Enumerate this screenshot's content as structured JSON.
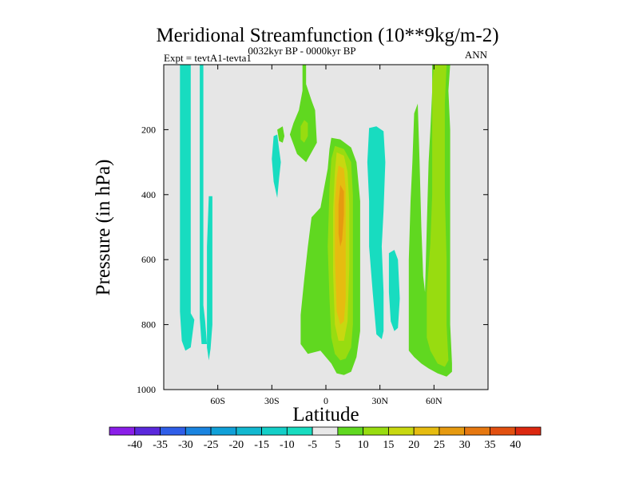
{
  "chart_data": {
    "type": "heatmap",
    "title": "Meridional Streamfunction (10**9kg/m-2)",
    "left_label": "Expt = tevtA1-tevta1",
    "center_label": "0032kyr BP - 0000kyr BP",
    "right_label": "ANN",
    "xlabel": "Latitude",
    "ylabel": "Pressure (in hPa)",
    "xlim": [
      -90,
      90
    ],
    "ylim": [
      1000,
      0
    ],
    "x_ticks": [
      {
        "value": -60,
        "label": "60S"
      },
      {
        "value": -30,
        "label": "30S"
      },
      {
        "value": 0,
        "label": "0"
      },
      {
        "value": 30,
        "label": "30N"
      },
      {
        "value": 60,
        "label": "60N"
      }
    ],
    "y_ticks": [
      {
        "value": 200,
        "label": "200"
      },
      {
        "value": 400,
        "label": "400"
      },
      {
        "value": 600,
        "label": "600"
      },
      {
        "value": 800,
        "label": "800"
      },
      {
        "value": 1000,
        "label": "1000"
      }
    ],
    "background_color": "#e6e6e6",
    "colorbar": {
      "levels": [
        "-40",
        "-35",
        "-30",
        "-25",
        "-20",
        "-15",
        "-10",
        "-5",
        "5",
        "10",
        "15",
        "20",
        "25",
        "30",
        "35",
        "40"
      ],
      "colors": [
        "#8a1ee8",
        "#5a28dc",
        "#2f5ee8",
        "#1a84e0",
        "#10a0d8",
        "#12b8d0",
        "#14cfc8",
        "#18dcc0",
        "#e8e8e8",
        "#60d820",
        "#98dc10",
        "#c8d810",
        "#e6bc10",
        "#e69a10",
        "#e67810",
        "#e25010",
        "#dc2810"
      ]
    },
    "regions": [
      {
        "name": "neg-band-far-south",
        "level": -7,
        "color": "#18dcc0",
        "points": [
          [
            -81,
            0
          ],
          [
            -75,
            0
          ],
          [
            -75,
            765
          ],
          [
            -73,
            785
          ],
          [
            -75,
            870
          ],
          [
            -78,
            880
          ],
          [
            -80,
            850
          ],
          [
            -81,
            760
          ]
        ]
      },
      {
        "name": "neg-band-south-a",
        "level": -7,
        "color": "#18dcc0",
        "points": [
          [
            -70,
            0
          ],
          [
            -68,
            0
          ],
          [
            -68,
            740
          ],
          [
            -67,
            790
          ],
          [
            -66,
            860
          ],
          [
            -69,
            860
          ],
          [
            -70,
            780
          ]
        ]
      },
      {
        "name": "neg-band-south-b",
        "level": -7,
        "color": "#18dcc0",
        "points": [
          [
            -65,
            405
          ],
          [
            -63,
            405
          ],
          [
            -63,
            800
          ],
          [
            -64,
            875
          ],
          [
            -65,
            910
          ],
          [
            -66,
            870
          ],
          [
            -66,
            560
          ]
        ]
      },
      {
        "name": "pos-upper-lobe",
        "level": 7,
        "color": "#60d820",
        "points": [
          [
            -13,
            0
          ],
          [
            -11,
            0
          ],
          [
            -11,
            60
          ],
          [
            -8,
            110
          ],
          [
            -6,
            140
          ],
          [
            -5,
            240
          ],
          [
            -8,
            270
          ],
          [
            -11,
            300
          ],
          [
            -16,
            275
          ],
          [
            -20,
            215
          ],
          [
            -18,
            180
          ],
          [
            -15,
            140
          ],
          [
            -13,
            80
          ]
        ]
      },
      {
        "name": "pos-upper-lobe-core",
        "level": 12,
        "color": "#98dc10",
        "points": [
          [
            -12,
            170
          ],
          [
            -10,
            180
          ],
          [
            -10,
            220
          ],
          [
            -12,
            240
          ],
          [
            -14,
            230
          ],
          [
            -14,
            190
          ]
        ]
      },
      {
        "name": "neg-upper-blob",
        "level": -7,
        "color": "#18dcc0",
        "points": [
          [
            -29,
            220
          ],
          [
            -27,
            215
          ],
          [
            -26,
            260
          ],
          [
            -25,
            300
          ],
          [
            -26,
            350
          ],
          [
            -27,
            410
          ],
          [
            -29,
            360
          ],
          [
            -30,
            290
          ]
        ]
      },
      {
        "name": "pos-upper-small",
        "level": 7,
        "color": "#60d820",
        "points": [
          [
            -27,
            200
          ],
          [
            -24,
            190
          ],
          [
            -23,
            220
          ],
          [
            -24,
            240
          ],
          [
            -26,
            235
          ]
        ]
      },
      {
        "name": "pos-main-cell-outer",
        "level": 7,
        "color": "#60d820",
        "points": [
          [
            3,
            225
          ],
          [
            8,
            230
          ],
          [
            14,
            255
          ],
          [
            17,
            300
          ],
          [
            19,
            420
          ],
          [
            19,
            640
          ],
          [
            19,
            820
          ],
          [
            17,
            900
          ],
          [
            14,
            945
          ],
          [
            10,
            955
          ],
          [
            6,
            950
          ],
          [
            3,
            920
          ],
          [
            -3,
            880
          ],
          [
            -10,
            890
          ],
          [
            -14,
            860
          ],
          [
            -14,
            770
          ],
          [
            -12,
            660
          ],
          [
            -10,
            560
          ],
          [
            -8,
            470
          ],
          [
            -3,
            440
          ],
          [
            1,
            320
          ],
          [
            2,
            260
          ]
        ]
      },
      {
        "name": "pos-main-cell-10",
        "level": 12,
        "color": "#98dc10",
        "points": [
          [
            5,
            250
          ],
          [
            10,
            260
          ],
          [
            14,
            300
          ],
          [
            15,
            400
          ],
          [
            15,
            600
          ],
          [
            15,
            800
          ],
          [
            14,
            870
          ],
          [
            11,
            905
          ],
          [
            8,
            910
          ],
          [
            5,
            890
          ],
          [
            3,
            840
          ],
          [
            2,
            720
          ],
          [
            1,
            560
          ],
          [
            2,
            380
          ],
          [
            3,
            290
          ]
        ]
      },
      {
        "name": "pos-main-cell-15",
        "level": 17,
        "color": "#c8d810",
        "points": [
          [
            6,
            270
          ],
          [
            10,
            280
          ],
          [
            12,
            330
          ],
          [
            13,
            430
          ],
          [
            13,
            620
          ],
          [
            12,
            790
          ],
          [
            10,
            850
          ],
          [
            7,
            850
          ],
          [
            5,
            800
          ],
          [
            4,
            640
          ],
          [
            4,
            450
          ],
          [
            5,
            330
          ]
        ]
      },
      {
        "name": "pos-main-cell-20",
        "level": 22,
        "color": "#e6bc10",
        "points": [
          [
            7,
            310
          ],
          [
            10,
            320
          ],
          [
            11,
            380
          ],
          [
            11,
            560
          ],
          [
            11,
            720
          ],
          [
            10,
            790
          ],
          [
            8,
            800
          ],
          [
            6,
            760
          ],
          [
            5,
            600
          ],
          [
            5,
            420
          ],
          [
            6,
            350
          ]
        ]
      },
      {
        "name": "pos-main-cell-25",
        "level": 27,
        "color": "#e69a10",
        "points": [
          [
            8,
            370
          ],
          [
            10,
            390
          ],
          [
            10,
            460
          ],
          [
            9,
            540
          ],
          [
            8,
            560
          ],
          [
            7,
            520
          ],
          [
            7,
            430
          ]
        ]
      },
      {
        "name": "neg-north-a",
        "level": -7,
        "color": "#18dcc0",
        "points": [
          [
            24,
            195
          ],
          [
            28,
            190
          ],
          [
            32,
            205
          ],
          [
            33,
            300
          ],
          [
            32,
            450
          ],
          [
            31,
            560
          ],
          [
            32,
            700
          ],
          [
            32,
            820
          ],
          [
            31,
            845
          ],
          [
            28,
            830
          ],
          [
            26,
            700
          ],
          [
            24,
            560
          ],
          [
            24,
            420
          ],
          [
            23,
            300
          ]
        ]
      },
      {
        "name": "neg-north-b",
        "level": -7,
        "color": "#18dcc0",
        "points": [
          [
            35,
            580
          ],
          [
            38,
            570
          ],
          [
            40,
            600
          ],
          [
            41,
            720
          ],
          [
            40,
            810
          ],
          [
            38,
            820
          ],
          [
            36,
            790
          ],
          [
            35,
            700
          ]
        ]
      },
      {
        "name": "pos-north-outer",
        "level": 7,
        "color": "#60d820",
        "points": [
          [
            59,
            0
          ],
          [
            69,
            0
          ],
          [
            68,
            80
          ],
          [
            69,
            200
          ],
          [
            69,
            600
          ],
          [
            69,
            800
          ],
          [
            70,
            920
          ],
          [
            70,
            945
          ],
          [
            67,
            960
          ],
          [
            62,
            950
          ],
          [
            57,
            935
          ],
          [
            53,
            920
          ],
          [
            49,
            900
          ],
          [
            46,
            880
          ],
          [
            46,
            600
          ],
          [
            47,
            420
          ],
          [
            48,
            300
          ],
          [
            49,
            150
          ],
          [
            51,
            120
          ],
          [
            52,
            300
          ],
          [
            53,
            500
          ],
          [
            54,
            650
          ],
          [
            55,
            700
          ],
          [
            56,
            500
          ],
          [
            57,
            300
          ],
          [
            58,
            200
          ],
          [
            59,
            80
          ]
        ]
      },
      {
        "name": "pos-north-10",
        "level": 12,
        "color": "#98dc10",
        "points": [
          [
            60,
            0
          ],
          [
            67,
            0
          ],
          [
            66,
            120
          ],
          [
            66,
            400
          ],
          [
            67,
            600
          ],
          [
            67,
            800
          ],
          [
            68,
            910
          ],
          [
            66,
            930
          ],
          [
            62,
            920
          ],
          [
            58,
            880
          ],
          [
            56,
            840
          ],
          [
            56,
            700
          ],
          [
            58,
            550
          ],
          [
            59,
            400
          ],
          [
            59,
            200
          ],
          [
            59,
            60
          ]
        ]
      }
    ]
  }
}
